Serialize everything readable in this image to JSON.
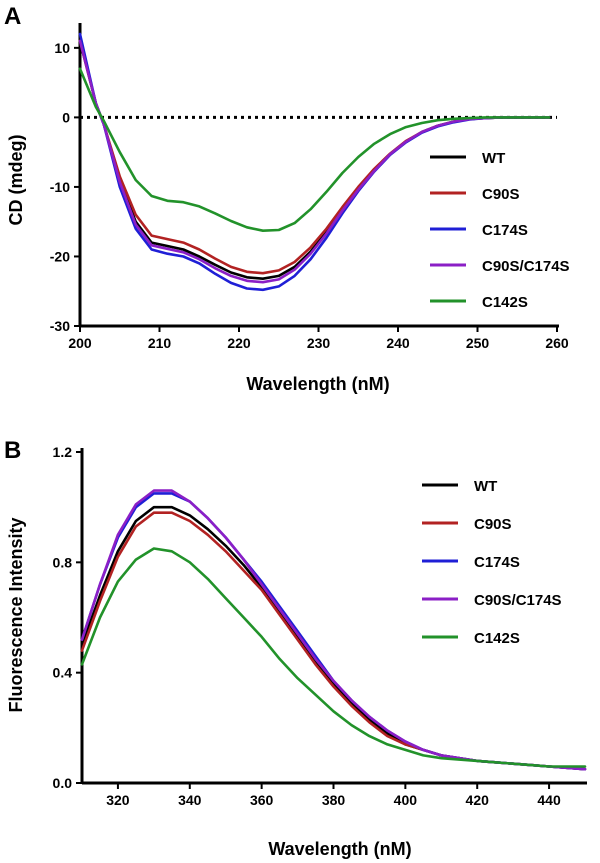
{
  "chart_data": [
    {
      "panel_label": "A",
      "type": "line",
      "xlabel": "Wavelength (nM)",
      "ylabel": "CD (mdeg)",
      "xlim": [
        200,
        260
      ],
      "ylim": [
        -30,
        13
      ],
      "xticks": [
        200,
        210,
        220,
        230,
        240,
        250,
        260
      ],
      "yticks": [
        -30,
        -20,
        -10,
        0,
        10
      ],
      "grid": false,
      "legend_position": "right",
      "zero_line": {
        "y": 0,
        "style": "dotted"
      },
      "series": [
        {
          "name": "WT",
          "color": "#000000",
          "x": [
            200,
            202,
            203,
            205,
            207,
            209,
            211,
            213,
            215,
            217,
            219,
            221,
            223,
            225,
            227,
            229,
            231,
            233,
            235,
            237,
            239,
            241,
            243,
            245,
            247,
            249,
            251,
            253,
            255,
            257,
            259
          ],
          "y": [
            11,
            2,
            -1,
            -9,
            -15,
            -18,
            -18.5,
            -19,
            -20,
            -21.2,
            -22.3,
            -23,
            -23.2,
            -22.8,
            -21.5,
            -19.3,
            -16.5,
            -13.3,
            -10.3,
            -7.6,
            -5.3,
            -3.5,
            -2.1,
            -1.2,
            -0.6,
            -0.25,
            -0.1,
            0,
            0,
            0,
            0
          ]
        },
        {
          "name": "C90S",
          "color": "#b22222",
          "x": [
            200,
            202,
            203,
            205,
            207,
            209,
            211,
            213,
            215,
            217,
            219,
            221,
            223,
            225,
            227,
            229,
            231,
            233,
            235,
            237,
            239,
            241,
            243,
            245,
            247,
            249,
            251,
            253,
            255,
            257,
            259
          ],
          "y": [
            11,
            2,
            -1,
            -8.5,
            -14,
            -17,
            -17.5,
            -18,
            -19,
            -20.3,
            -21.5,
            -22.2,
            -22.4,
            -22,
            -20.8,
            -18.7,
            -16,
            -12.9,
            -10,
            -7.4,
            -5.2,
            -3.4,
            -2.1,
            -1.2,
            -0.6,
            -0.25,
            -0.1,
            0,
            0,
            0,
            0
          ]
        },
        {
          "name": "C174S",
          "color": "#1f1fd6",
          "x": [
            200,
            202,
            203,
            205,
            207,
            209,
            211,
            213,
            215,
            217,
            219,
            221,
            223,
            225,
            227,
            229,
            231,
            233,
            235,
            237,
            239,
            241,
            243,
            245,
            247,
            249,
            251,
            253,
            255,
            257,
            259
          ],
          "y": [
            12,
            2,
            -1,
            -10,
            -16,
            -19,
            -19.6,
            -20,
            -21,
            -22.5,
            -23.8,
            -24.6,
            -24.8,
            -24.3,
            -22.8,
            -20.4,
            -17.3,
            -13.8,
            -10.6,
            -7.8,
            -5.4,
            -3.6,
            -2.2,
            -1.3,
            -0.7,
            -0.3,
            -0.1,
            0,
            0,
            0,
            0
          ]
        },
        {
          "name": "C90S/C174S",
          "color": "#8b1fc6",
          "x": [
            200,
            202,
            203,
            205,
            207,
            209,
            211,
            213,
            215,
            217,
            219,
            221,
            223,
            225,
            227,
            229,
            231,
            233,
            235,
            237,
            239,
            241,
            243,
            245,
            247,
            249,
            251,
            253,
            255,
            257,
            259
          ],
          "y": [
            11,
            2,
            -1,
            -9.3,
            -15.4,
            -18.4,
            -18.9,
            -19.4,
            -20.4,
            -21.7,
            -22.8,
            -23.5,
            -23.7,
            -23.3,
            -21.9,
            -19.6,
            -16.7,
            -13.4,
            -10.4,
            -7.7,
            -5.3,
            -3.5,
            -2.1,
            -1.2,
            -0.6,
            -0.25,
            -0.1,
            0,
            0,
            0,
            0
          ]
        },
        {
          "name": "C142S",
          "color": "#22922a",
          "x": [
            200,
            202,
            203,
            205,
            207,
            209,
            211,
            213,
            215,
            217,
            219,
            221,
            223,
            225,
            227,
            229,
            231,
            233,
            235,
            237,
            239,
            241,
            243,
            245,
            247,
            249,
            251,
            253,
            255,
            257,
            259
          ],
          "y": [
            7,
            1.5,
            -0.5,
            -5,
            -9,
            -11.3,
            -12,
            -12.2,
            -12.8,
            -13.8,
            -14.9,
            -15.8,
            -16.3,
            -16.2,
            -15.2,
            -13.2,
            -10.7,
            -8,
            -5.7,
            -3.8,
            -2.4,
            -1.4,
            -0.8,
            -0.4,
            -0.2,
            -0.1,
            0,
            0,
            0,
            0,
            0
          ]
        }
      ]
    },
    {
      "panel_label": "B",
      "type": "line",
      "xlabel": "Wavelength (nM)",
      "ylabel": "Fluorescence Intensity",
      "xlim": [
        310,
        450
      ],
      "ylim": [
        0,
        1.2
      ],
      "xticks": [
        320,
        340,
        360,
        380,
        400,
        420,
        440
      ],
      "yticks": [
        0.0,
        0.4,
        0.8,
        1.2
      ],
      "ytick_labels": [
        "0.0",
        "0.4",
        "0.8",
        "1.2"
      ],
      "grid": false,
      "legend_position": "right",
      "series": [
        {
          "name": "WT",
          "color": "#000000",
          "x": [
            310,
            315,
            320,
            325,
            330,
            335,
            340,
            345,
            350,
            355,
            360,
            365,
            370,
            375,
            380,
            385,
            390,
            395,
            400,
            405,
            410,
            415,
            420,
            425,
            430,
            435,
            440,
            445,
            450
          ],
          "y": [
            0.5,
            0.68,
            0.84,
            0.95,
            1.0,
            1.0,
            0.97,
            0.92,
            0.86,
            0.79,
            0.71,
            0.62,
            0.53,
            0.44,
            0.36,
            0.29,
            0.23,
            0.18,
            0.14,
            0.12,
            0.1,
            0.09,
            0.08,
            0.075,
            0.07,
            0.065,
            0.06,
            0.055,
            0.05
          ]
        },
        {
          "name": "C90S",
          "color": "#b22222",
          "x": [
            310,
            315,
            320,
            325,
            330,
            335,
            340,
            345,
            350,
            355,
            360,
            365,
            370,
            375,
            380,
            385,
            390,
            395,
            400,
            405,
            410,
            415,
            420,
            425,
            430,
            435,
            440,
            445,
            450
          ],
          "y": [
            0.48,
            0.66,
            0.82,
            0.93,
            0.98,
            0.98,
            0.95,
            0.9,
            0.84,
            0.77,
            0.7,
            0.61,
            0.52,
            0.43,
            0.35,
            0.28,
            0.22,
            0.17,
            0.14,
            0.12,
            0.1,
            0.09,
            0.08,
            0.075,
            0.07,
            0.065,
            0.06,
            0.055,
            0.05
          ]
        },
        {
          "name": "C174S",
          "color": "#1f1fd6",
          "x": [
            310,
            315,
            320,
            325,
            330,
            335,
            340,
            345,
            350,
            355,
            360,
            365,
            370,
            375,
            380,
            385,
            390,
            395,
            400,
            405,
            410,
            415,
            420,
            425,
            430,
            435,
            440,
            445,
            450
          ],
          "y": [
            0.52,
            0.72,
            0.89,
            1.0,
            1.05,
            1.05,
            1.02,
            0.96,
            0.89,
            0.81,
            0.73,
            0.64,
            0.55,
            0.46,
            0.37,
            0.3,
            0.24,
            0.19,
            0.15,
            0.12,
            0.1,
            0.09,
            0.08,
            0.075,
            0.07,
            0.065,
            0.06,
            0.055,
            0.05
          ]
        },
        {
          "name": "C90S/C174S",
          "color": "#8b1fc6",
          "x": [
            310,
            315,
            320,
            325,
            330,
            335,
            340,
            345,
            350,
            355,
            360,
            365,
            370,
            375,
            380,
            385,
            390,
            395,
            400,
            405,
            410,
            415,
            420,
            425,
            430,
            435,
            440,
            445,
            450
          ],
          "y": [
            0.52,
            0.72,
            0.9,
            1.01,
            1.06,
            1.06,
            1.02,
            0.96,
            0.89,
            0.81,
            0.72,
            0.63,
            0.54,
            0.45,
            0.37,
            0.3,
            0.24,
            0.19,
            0.15,
            0.12,
            0.1,
            0.09,
            0.08,
            0.075,
            0.07,
            0.065,
            0.06,
            0.055,
            0.05
          ]
        },
        {
          "name": "C142S",
          "color": "#22922a",
          "x": [
            310,
            315,
            320,
            325,
            330,
            335,
            340,
            345,
            350,
            355,
            360,
            365,
            370,
            375,
            380,
            385,
            390,
            395,
            400,
            405,
            410,
            415,
            420,
            425,
            430,
            435,
            440,
            445,
            450
          ],
          "y": [
            0.43,
            0.6,
            0.73,
            0.81,
            0.85,
            0.84,
            0.8,
            0.74,
            0.67,
            0.6,
            0.53,
            0.45,
            0.38,
            0.32,
            0.26,
            0.21,
            0.17,
            0.14,
            0.12,
            0.1,
            0.09,
            0.085,
            0.08,
            0.075,
            0.07,
            0.065,
            0.06,
            0.06,
            0.06
          ]
        }
      ]
    }
  ]
}
